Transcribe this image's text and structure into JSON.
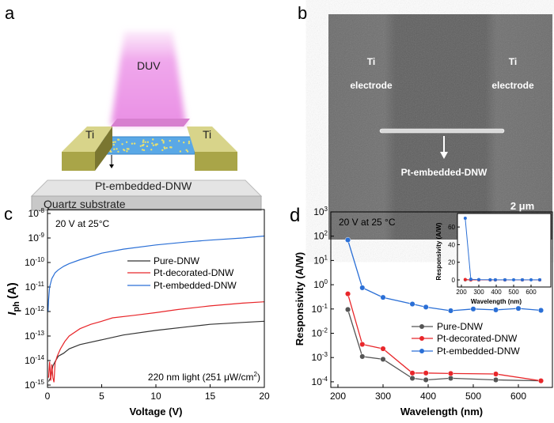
{
  "panels": {
    "a": {
      "label": "a",
      "beam_label": "DUV",
      "left_electrode": "Ti",
      "right_electrode": "Ti",
      "wire_label": "Pt-embedded-DNW",
      "substrate_label": "Quartz substrate",
      "colors": {
        "beam": "#f0a8ec",
        "electrode": "#b9b55a",
        "wire": "#6aaee6",
        "substrate": "#d0d0d0"
      }
    },
    "b": {
      "label": "b",
      "left_electrode": [
        "Ti",
        "electrode"
      ],
      "right_electrode": [
        "Ti",
        "electrode"
      ],
      "wire_label": "Pt-embedded-DNW",
      "scale_bar": "2 μm"
    }
  },
  "chart_data": [
    {
      "panel_label": "c",
      "type": "line",
      "xlabel": "Voltage (V)",
      "ylabel_main": "I",
      "ylabel_sub": "ph",
      "ylabel_unit": "(A)",
      "xlim": [
        0,
        20
      ],
      "ylim": [
        1e-15,
        1e-08
      ],
      "yscale": "log",
      "xticks": [
        "0",
        "5",
        "10",
        "15",
        "20"
      ],
      "yticks": [
        {
          "base": "10",
          "exp": "-8"
        },
        {
          "base": "10",
          "exp": "-9"
        },
        {
          "base": "10",
          "exp": "-10"
        },
        {
          "base": "10",
          "exp": "-11"
        },
        {
          "base": "10",
          "exp": "-12"
        },
        {
          "base": "10",
          "exp": "-13"
        },
        {
          "base": "10",
          "exp": "-14"
        },
        {
          "base": "10",
          "exp": "-15"
        }
      ],
      "annotation_top": "20 V at 25°C",
      "annotation_bottom": "220 nm light (251 μW/cm",
      "annotation_bottom_sup": "2",
      "annotation_bottom_end": ")",
      "legend": "center-right",
      "series": [
        {
          "name": "Pure-DNW",
          "color": "#333333",
          "x": [
            0.1,
            0.3,
            0.5,
            0.7,
            1,
            1.5,
            2,
            3,
            5,
            7,
            10,
            13,
            15,
            18,
            20
          ],
          "y": [
            1.4e-15,
            2e-15,
            6e-15,
            9e-15,
            1.5e-14,
            2e-14,
            3e-14,
            4.5e-14,
            7e-14,
            1.1e-13,
            1.7e-13,
            2.4e-13,
            3e-13,
            3.6e-13,
            4e-13
          ]
        },
        {
          "name": "Pt-decorated-DNW",
          "color": "#e8262a",
          "x": [
            0.1,
            0.2,
            0.3,
            0.4,
            0.5,
            0.6,
            0.7,
            0.9,
            1.2,
            1.6,
            2,
            3,
            4,
            5,
            6,
            8,
            10,
            12,
            15,
            18,
            20
          ],
          "y": [
            2e-15,
            9e-15,
            1.5e-15,
            7e-15,
            2e-15,
            1.3e-15,
            8e-15,
            1.5e-14,
            3e-14,
            6e-14,
            1e-13,
            2e-13,
            3e-13,
            4e-13,
            5.5e-13,
            7e-13,
            9e-13,
            1.2e-12,
            1.7e-12,
            2.2e-12,
            2.5e-12
          ]
        },
        {
          "name": "Pt-embedded-DNW",
          "color": "#2a6fd6",
          "x": [
            0.05,
            0.1,
            0.2,
            0.4,
            0.7,
            1,
            1.5,
            2,
            3,
            5,
            7,
            10,
            13,
            15,
            18,
            20
          ],
          "y": [
            1e-12,
            3e-12,
            1e-11,
            2.2e-11,
            3.8e-11,
            5e-11,
            7e-11,
            9e-11,
            1.3e-10,
            2.4e-10,
            3.5e-10,
            5.2e-10,
            7e-10,
            8.2e-10,
            1e-09,
            1.2e-09
          ]
        }
      ]
    },
    {
      "panel_label": "d",
      "type": "line",
      "xlabel": "Wavelength (nm)",
      "ylabel": "Responsivity (A/W)",
      "xlim": [
        180,
        660
      ],
      "ylim": [
        0.0001,
        1000.0
      ],
      "yscale": "log",
      "xticks": [
        "200",
        "300",
        "400",
        "500",
        "600"
      ],
      "yticks": [
        {
          "base": "10",
          "exp": "3"
        },
        {
          "base": "10",
          "exp": "2"
        },
        {
          "base": "10",
          "exp": "1"
        },
        {
          "base": "10",
          "exp": "0"
        },
        {
          "base": "10",
          "exp": "-1"
        },
        {
          "base": "10",
          "exp": "-2"
        },
        {
          "base": "10",
          "exp": "-3"
        },
        {
          "base": "10",
          "exp": "-4"
        }
      ],
      "annotation_top": "20 V at 25 °C",
      "legend": "bottom-right",
      "series": [
        {
          "name": "Pure-DNW",
          "color": "#555555",
          "x": [
            222,
            254,
            300,
            365,
            395,
            450,
            550,
            650
          ],
          "y": [
            0.095,
            0.0011,
            0.00085,
            0.00014,
            0.00012,
            0.00014,
            0.00012,
            0.00011
          ]
        },
        {
          "name": "Pt-decorated-DNW",
          "color": "#e8262a",
          "x": [
            222,
            254,
            300,
            365,
            395,
            450,
            550,
            650
          ],
          "y": [
            0.42,
            0.0035,
            0.0023,
            0.00023,
            0.00023,
            0.00022,
            0.00021,
            0.00011
          ]
        },
        {
          "name": "Pt-embedded-DNW",
          "color": "#2a6fd6",
          "x": [
            222,
            254,
            300,
            365,
            395,
            450,
            500,
            550,
            600,
            650
          ],
          "y": [
            70,
            0.75,
            0.3,
            0.16,
            0.12,
            0.085,
            0.1,
            0.092,
            0.105,
            0.088
          ]
        }
      ],
      "inset": {
        "type": "line",
        "xlabel": "Wavelength (nm)",
        "ylabel": "Responsivity (A/W)",
        "xlim": [
          180,
          660
        ],
        "ylim": [
          -7,
          75
        ],
        "yscale": "linear",
        "xticks": [
          "200",
          "300",
          "400",
          "500",
          "600"
        ],
        "yticks": [
          "0",
          "20",
          "40",
          "60"
        ]
      }
    }
  ]
}
